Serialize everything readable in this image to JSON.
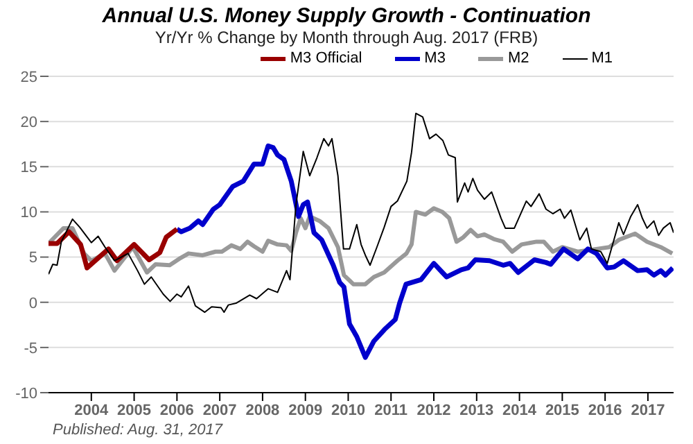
{
  "chart_data": {
    "type": "line",
    "title": "Annual U.S. Money Supply Growth - Continuation",
    "subtitle": "Yr/Yr % Change by Month through Aug. 2017  (FRB)",
    "annotations": [
      "Published: Aug. 31, 2017"
    ],
    "xlim": [
      2003,
      2017.6
    ],
    "xticks": [
      2004,
      2005,
      2006,
      2007,
      2008,
      2009,
      2010,
      2011,
      2012,
      2013,
      2014,
      2015,
      2016,
      2017
    ],
    "ylim": [
      -10,
      25
    ],
    "yticks": [
      -10,
      -5,
      0,
      5,
      10,
      15,
      20,
      25
    ],
    "grid": "y",
    "legend": "top right",
    "marker": "none",
    "line_style": "solid",
    "series": [
      {
        "name": "M3 Official",
        "color": "#990000",
        "x": [
          2003.0,
          2003.2,
          2003.48,
          2003.75,
          2003.9,
          2004.4,
          2004.6,
          2005.0,
          2005.35,
          2005.6,
          2005.75,
          2006.0
        ],
        "values": [
          6.5,
          6.5,
          7.8,
          6.4,
          3.8,
          5.9,
          4.6,
          6.4,
          4.7,
          5.5,
          7.2,
          8.1
        ]
      },
      {
        "name": "M3",
        "color": "#0000cc",
        "x": [
          2006.0,
          2006.1,
          2006.3,
          2006.5,
          2006.6,
          2006.85,
          2007.0,
          2007.3,
          2007.55,
          2007.8,
          2008.0,
          2008.13,
          2008.25,
          2008.35,
          2008.5,
          2008.67,
          2008.84,
          2008.95,
          2009.05,
          2009.2,
          2009.38,
          2009.65,
          2009.8,
          2009.9,
          2010.03,
          2010.2,
          2010.4,
          2010.6,
          2010.85,
          2011.1,
          2011.2,
          2011.35,
          2011.7,
          2012.0,
          2012.2,
          2012.3,
          2012.64,
          2012.8,
          2012.97,
          2013.3,
          2013.62,
          2013.78,
          2013.97,
          2014.35,
          2014.62,
          2014.73,
          2015.03,
          2015.36,
          2015.6,
          2015.8,
          2016.05,
          2016.21,
          2016.43,
          2016.76,
          2016.98,
          2017.14,
          2017.3,
          2017.41,
          2017.58
        ],
        "values": [
          8.1,
          7.8,
          8.2,
          9.0,
          8.6,
          10.3,
          10.8,
          12.8,
          13.4,
          15.3,
          15.3,
          17.3,
          17.1,
          16.3,
          15.8,
          13.4,
          9.5,
          10.8,
          11.1,
          7.7,
          6.9,
          4.1,
          2.2,
          1.7,
          -2.4,
          -3.8,
          -6.1,
          -4.3,
          -3.0,
          -1.9,
          -0.1,
          2.0,
          2.5,
          4.3,
          3.3,
          2.8,
          3.6,
          3.8,
          4.7,
          4.6,
          4.1,
          4.3,
          3.3,
          4.7,
          4.4,
          4.2,
          5.9,
          4.8,
          5.9,
          5.4,
          3.8,
          3.9,
          4.6,
          3.5,
          3.6,
          3.0,
          3.5,
          3.0,
          3.8
        ]
      },
      {
        "name": "M2",
        "color": "#999999",
        "x": [
          2003.0,
          2003.35,
          2003.56,
          2003.83,
          2004.0,
          2004.32,
          2004.54,
          2004.97,
          2005.3,
          2005.5,
          2005.83,
          2006.05,
          2006.27,
          2006.6,
          2006.9,
          2007.05,
          2007.27,
          2007.48,
          2007.65,
          2007.8,
          2008.0,
          2008.13,
          2008.35,
          2008.56,
          2008.67,
          2008.78,
          2008.89,
          2009.0,
          2009.1,
          2009.33,
          2009.54,
          2009.76,
          2009.9,
          2010.12,
          2010.4,
          2010.6,
          2010.84,
          2011.15,
          2011.36,
          2011.48,
          2011.58,
          2011.8,
          2012.0,
          2012.2,
          2012.36,
          2012.53,
          2012.69,
          2012.86,
          2013.02,
          2013.18,
          2013.4,
          2013.62,
          2013.83,
          2014.05,
          2014.4,
          2014.57,
          2014.78,
          2015.0,
          2015.36,
          2015.8,
          2016.1,
          2016.32,
          2016.7,
          2016.98,
          2017.3,
          2017.57
        ],
        "values": [
          6.5,
          8.2,
          8.2,
          5.4,
          4.6,
          5.4,
          3.5,
          6.1,
          3.3,
          4.2,
          4.1,
          4.8,
          5.4,
          5.2,
          5.6,
          5.6,
          6.3,
          5.9,
          6.7,
          6.2,
          5.6,
          6.8,
          6.4,
          6.3,
          5.7,
          7.7,
          9.3,
          8.2,
          9.5,
          9.0,
          8.2,
          6.1,
          3.0,
          2.0,
          2.0,
          2.8,
          3.3,
          4.6,
          5.4,
          6.4,
          10.0,
          9.7,
          10.4,
          10.0,
          9.3,
          6.7,
          7.2,
          8.0,
          7.3,
          7.5,
          7.0,
          6.7,
          5.6,
          6.4,
          6.7,
          6.7,
          5.6,
          6.1,
          5.6,
          5.9,
          6.1,
          6.9,
          7.6,
          6.7,
          6.1,
          5.4
        ]
      },
      {
        "name": "M1",
        "color": "#000000",
        "x": [
          2003.0,
          2003.1,
          2003.2,
          2003.3,
          2003.56,
          2003.73,
          2004.0,
          2004.16,
          2004.32,
          2004.54,
          2004.86,
          2005.08,
          2005.24,
          2005.4,
          2005.68,
          2005.84,
          2006.0,
          2006.1,
          2006.27,
          2006.43,
          2006.65,
          2006.81,
          2007.03,
          2007.1,
          2007.2,
          2007.38,
          2007.7,
          2007.86,
          2008.13,
          2008.35,
          2008.56,
          2008.64,
          2008.78,
          2008.95,
          2009.1,
          2009.27,
          2009.43,
          2009.54,
          2009.62,
          2009.76,
          2009.89,
          2010.03,
          2010.2,
          2010.3,
          2010.41,
          2010.51,
          2010.67,
          2010.84,
          2011.0,
          2011.15,
          2011.37,
          2011.48,
          2011.58,
          2011.74,
          2011.9,
          2012.05,
          2012.21,
          2012.34,
          2012.5,
          2012.55,
          2012.72,
          2012.8,
          2012.91,
          2013.02,
          2013.18,
          2013.35,
          2013.57,
          2013.67,
          2013.88,
          2014.16,
          2014.27,
          2014.46,
          2014.62,
          2014.78,
          2014.95,
          2015.05,
          2015.2,
          2015.41,
          2015.57,
          2015.68,
          2015.9,
          2016.05,
          2016.32,
          2016.43,
          2016.6,
          2016.76,
          2016.87,
          2016.98,
          2017.14,
          2017.25,
          2017.36,
          2017.52,
          2017.6
        ],
        "values": [
          3.1,
          4.2,
          4.1,
          6.7,
          9.2,
          8.3,
          6.6,
          7.3,
          6.1,
          4.6,
          5.4,
          3.5,
          2.0,
          2.8,
          0.9,
          0.1,
          0.9,
          0.6,
          1.8,
          -0.4,
          -1.1,
          -0.5,
          -0.6,
          -1.1,
          -0.3,
          -0.1,
          0.8,
          0.4,
          1.5,
          1.1,
          3.5,
          2.5,
          10.8,
          16.7,
          14.0,
          16.0,
          18.1,
          17.3,
          18.1,
          14.0,
          5.9,
          5.9,
          8.6,
          6.4,
          5.1,
          4.1,
          6.1,
          8.3,
          10.6,
          11.2,
          13.4,
          16.6,
          20.9,
          20.5,
          18.1,
          18.6,
          17.9,
          16.3,
          16.0,
          11.1,
          13.2,
          12.2,
          13.7,
          12.4,
          11.4,
          12.2,
          9.3,
          8.2,
          8.2,
          11.2,
          10.6,
          12.0,
          10.3,
          9.8,
          10.3,
          9.3,
          10.2,
          6.9,
          8.2,
          5.9,
          5.6,
          4.3,
          8.8,
          7.5,
          9.5,
          10.8,
          9.3,
          8.2,
          9.0,
          7.4,
          8.2,
          8.8,
          7.7
        ]
      }
    ]
  }
}
